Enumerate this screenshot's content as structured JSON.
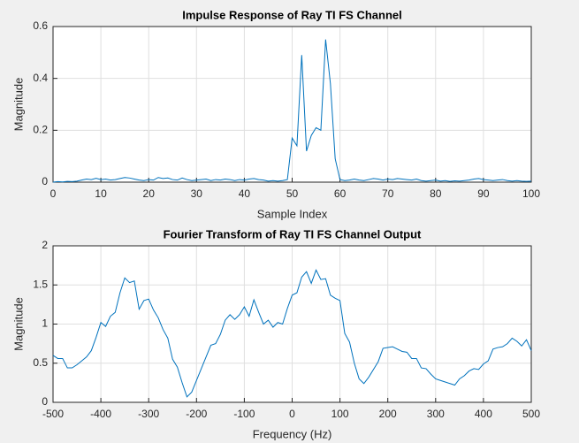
{
  "chart_data": [
    {
      "type": "line",
      "title": "Impulse Response of Ray TI FS Channel",
      "xlabel": "Sample Index",
      "ylabel": "Magnitude",
      "color": "#0072bd",
      "grid": true,
      "xlim": [
        0,
        100
      ],
      "ylim": [
        0,
        0.6
      ],
      "xticks": [
        0,
        10,
        20,
        30,
        40,
        50,
        60,
        70,
        80,
        90,
        100
      ],
      "yticks": [
        0,
        0.2,
        0.4,
        0.6
      ],
      "x": [
        0,
        1,
        2,
        3,
        4,
        5,
        6,
        7,
        8,
        9,
        10,
        11,
        12,
        13,
        14,
        15,
        16,
        17,
        18,
        19,
        20,
        21,
        22,
        23,
        24,
        25,
        26,
        27,
        28,
        29,
        30,
        31,
        32,
        33,
        34,
        35,
        36,
        37,
        38,
        39,
        40,
        41,
        42,
        43,
        44,
        45,
        46,
        47,
        48,
        49,
        50,
        51,
        52,
        53,
        54,
        55,
        56,
        57,
        58,
        59,
        60,
        61,
        62,
        63,
        64,
        65,
        66,
        67,
        68,
        69,
        70,
        71,
        72,
        73,
        74,
        75,
        76,
        77,
        78,
        79,
        80,
        81,
        82,
        83,
        84,
        85,
        86,
        87,
        88,
        89,
        90,
        91,
        92,
        93,
        94,
        95,
        96,
        97,
        98,
        99,
        100
      ],
      "values": [
        0,
        0.002,
        0.001,
        0.003,
        0.002,
        0.004,
        0.008,
        0.012,
        0.01,
        0.015,
        0.01,
        0.012,
        0.008,
        0.01,
        0.014,
        0.018,
        0.016,
        0.012,
        0.008,
        0.006,
        0.01,
        0.008,
        0.018,
        0.014,
        0.016,
        0.01,
        0.008,
        0.016,
        0.01,
        0.006,
        0.008,
        0.01,
        0.012,
        0.006,
        0.01,
        0.008,
        0.012,
        0.01,
        0.006,
        0.01,
        0.008,
        0.012,
        0.014,
        0.01,
        0.008,
        0.004,
        0.006,
        0.004,
        0.006,
        0.01,
        0.17,
        0.14,
        0.49,
        0.12,
        0.18,
        0.21,
        0.2,
        0.55,
        0.38,
        0.09,
        0.01,
        0.006,
        0.008,
        0.012,
        0.008,
        0.006,
        0.01,
        0.014,
        0.012,
        0.008,
        0.012,
        0.01,
        0.014,
        0.012,
        0.01,
        0.008,
        0.012,
        0.006,
        0.004,
        0.006,
        0.008,
        0.004,
        0.006,
        0.003,
        0.005,
        0.004,
        0.006,
        0.008,
        0.012,
        0.014,
        0.01,
        0.008,
        0.006,
        0.008,
        0.01,
        0.006,
        0.004,
        0.006,
        0.004,
        0.003,
        0.004
      ]
    },
    {
      "type": "line",
      "title": "Fourier Transform of Ray TI FS Channel Output",
      "xlabel": "Frequency (Hz)",
      "ylabel": "Magnitude",
      "color": "#0072bd",
      "grid": true,
      "xlim": [
        -500,
        500
      ],
      "ylim": [
        0,
        2
      ],
      "xticks": [
        -500,
        -400,
        -300,
        -200,
        -100,
        0,
        100,
        200,
        300,
        400,
        500
      ],
      "yticks": [
        0,
        0.5,
        1,
        1.5,
        2
      ],
      "x": [
        -500,
        -490,
        -480,
        -470,
        -460,
        -450,
        -440,
        -430,
        -420,
        -410,
        -400,
        -390,
        -380,
        -370,
        -360,
        -350,
        -340,
        -330,
        -320,
        -310,
        -300,
        -290,
        -280,
        -270,
        -260,
        -250,
        -240,
        -230,
        -220,
        -210,
        -200,
        -190,
        -180,
        -170,
        -160,
        -150,
        -140,
        -130,
        -120,
        -110,
        -100,
        -90,
        -80,
        -70,
        -60,
        -50,
        -40,
        -30,
        -20,
        -10,
        0,
        10,
        20,
        30,
        40,
        50,
        60,
        70,
        80,
        90,
        100,
        110,
        120,
        130,
        140,
        150,
        160,
        170,
        180,
        190,
        200,
        210,
        220,
        230,
        240,
        250,
        260,
        270,
        280,
        290,
        300,
        310,
        320,
        330,
        340,
        350,
        360,
        370,
        380,
        390,
        400,
        410,
        420,
        430,
        440,
        450,
        460,
        470,
        480,
        490,
        500
      ],
      "values": [
        0.6,
        0.56,
        0.56,
        0.44,
        0.44,
        0.48,
        0.53,
        0.58,
        0.66,
        0.83,
        1.02,
        0.97,
        1.1,
        1.15,
        1.4,
        1.59,
        1.53,
        1.55,
        1.19,
        1.3,
        1.32,
        1.18,
        1.08,
        0.93,
        0.82,
        0.55,
        0.45,
        0.25,
        0.07,
        0.13,
        0.28,
        0.43,
        0.58,
        0.73,
        0.75,
        0.87,
        1.05,
        1.12,
        1.06,
        1.12,
        1.22,
        1.1,
        1.31,
        1.15,
        1.0,
        1.05,
        0.96,
        1.02,
        1.0,
        1.2,
        1.37,
        1.4,
        1.6,
        1.67,
        1.52,
        1.69,
        1.57,
        1.58,
        1.37,
        1.33,
        1.3,
        0.88,
        0.77,
        0.5,
        0.3,
        0.24,
        0.32,
        0.42,
        0.52,
        0.69,
        0.7,
        0.71,
        0.68,
        0.65,
        0.64,
        0.56,
        0.56,
        0.44,
        0.43,
        0.36,
        0.3,
        0.28,
        0.26,
        0.24,
        0.22,
        0.3,
        0.34,
        0.4,
        0.43,
        0.42,
        0.49,
        0.53,
        0.68,
        0.7,
        0.71,
        0.75,
        0.82,
        0.78,
        0.72,
        0.8,
        0.66
      ]
    }
  ]
}
